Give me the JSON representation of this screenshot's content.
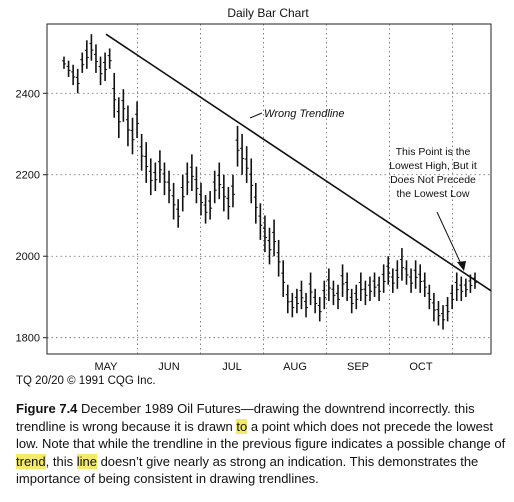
{
  "chart_data": {
    "type": "bar",
    "subtype": "ohlc",
    "title": "Daily Bar Chart",
    "ylim": [
      1760,
      2570
    ],
    "yticks": [
      1800,
      2000,
      2200,
      2400
    ],
    "grid": true,
    "months": [
      "MAY",
      "JUN",
      "JUL",
      "AUG",
      "SEP",
      "OCT"
    ],
    "trendline": {
      "label": "Wrong Trendline",
      "start": {
        "x": "early May",
        "y": 2545
      },
      "end": {
        "x": "late Oct",
        "y": 1915
      }
    },
    "annotation": {
      "lines": [
        "This Point is the",
        "Lowest High, But it",
        "Does Not Precede",
        "the Lowest Low"
      ]
    },
    "bars": [
      {
        "high": 2490,
        "low": 2460
      },
      {
        "high": 2480,
        "low": 2440
      },
      {
        "high": 2470,
        "low": 2420
      },
      {
        "high": 2460,
        "low": 2400
      },
      {
        "high": 2500,
        "low": 2450
      },
      {
        "high": 2530,
        "low": 2460
      },
      {
        "high": 2545,
        "low": 2480
      },
      {
        "high": 2520,
        "low": 2450
      },
      {
        "high": 2490,
        "low": 2420
      },
      {
        "high": 2500,
        "low": 2430
      },
      {
        "high": 2510,
        "low": 2460
      },
      {
        "high": 2450,
        "low": 2340
      },
      {
        "high": 2390,
        "low": 2290
      },
      {
        "high": 2410,
        "low": 2330
      },
      {
        "high": 2370,
        "low": 2270
      },
      {
        "high": 2340,
        "low": 2250
      },
      {
        "high": 2380,
        "low": 2290
      },
      {
        "high": 2300,
        "low": 2210
      },
      {
        "high": 2280,
        "low": 2180
      },
      {
        "high": 2240,
        "low": 2150
      },
      {
        "high": 2230,
        "low": 2160
      },
      {
        "high": 2260,
        "low": 2180
      },
      {
        "high": 2230,
        "low": 2150
      },
      {
        "high": 2210,
        "low": 2130
      },
      {
        "high": 2180,
        "low": 2090
      },
      {
        "high": 2140,
        "low": 2070
      },
      {
        "high": 2200,
        "low": 2110
      },
      {
        "high": 2230,
        "low": 2150
      },
      {
        "high": 2250,
        "low": 2160
      },
      {
        "high": 2220,
        "low": 2130
      },
      {
        "high": 2180,
        "low": 2100
      },
      {
        "high": 2150,
        "low": 2080
      },
      {
        "high": 2160,
        "low": 2090
      },
      {
        "high": 2210,
        "low": 2130
      },
      {
        "high": 2230,
        "low": 2140
      },
      {
        "high": 2200,
        "low": 2110
      },
      {
        "high": 2170,
        "low": 2090
      },
      {
        "high": 2200,
        "low": 2120
      },
      {
        "high": 2320,
        "low": 2220
      },
      {
        "high": 2300,
        "low": 2200
      },
      {
        "high": 2270,
        "low": 2180
      },
      {
        "high": 2240,
        "low": 2130
      },
      {
        "high": 2180,
        "low": 2080
      },
      {
        "high": 2130,
        "low": 2040
      },
      {
        "high": 2100,
        "low": 2010
      },
      {
        "high": 2070,
        "low": 1980
      },
      {
        "high": 2090,
        "low": 2000
      },
      {
        "high": 2040,
        "low": 1950
      },
      {
        "high": 1990,
        "low": 1900
      },
      {
        "high": 1930,
        "low": 1860
      },
      {
        "high": 1910,
        "low": 1850
      },
      {
        "high": 1920,
        "low": 1860
      },
      {
        "high": 1940,
        "low": 1870
      },
      {
        "high": 1910,
        "low": 1850
      },
      {
        "high": 1960,
        "low": 1880
      },
      {
        "high": 1920,
        "low": 1860
      },
      {
        "high": 1900,
        "low": 1840
      },
      {
        "high": 1940,
        "low": 1870
      },
      {
        "high": 1970,
        "low": 1890
      },
      {
        "high": 1940,
        "low": 1880
      },
      {
        "high": 1930,
        "low": 1870
      },
      {
        "high": 1980,
        "low": 1900
      },
      {
        "high": 1960,
        "low": 1890
      },
      {
        "high": 1920,
        "low": 1860
      },
      {
        "high": 1930,
        "low": 1870
      },
      {
        "high": 1960,
        "low": 1890
      },
      {
        "high": 1940,
        "low": 1880
      },
      {
        "high": 1950,
        "low": 1890
      },
      {
        "high": 1960,
        "low": 1900
      },
      {
        "high": 1950,
        "low": 1890
      },
      {
        "high": 1980,
        "low": 1910
      },
      {
        "high": 2000,
        "low": 1930
      },
      {
        "high": 1970,
        "low": 1910
      },
      {
        "high": 1990,
        "low": 1920
      },
      {
        "high": 2020,
        "low": 1940
      },
      {
        "high": 1990,
        "low": 1930
      },
      {
        "high": 1970,
        "low": 1910
      },
      {
        "high": 1990,
        "low": 1920
      },
      {
        "high": 1980,
        "low": 1910
      },
      {
        "high": 1960,
        "low": 1900
      },
      {
        "high": 1930,
        "low": 1870
      },
      {
        "high": 1910,
        "low": 1840
      },
      {
        "high": 1890,
        "low": 1830
      },
      {
        "high": 1880,
        "low": 1820
      },
      {
        "high": 1900,
        "low": 1840
      },
      {
        "high": 1930,
        "low": 1870
      },
      {
        "high": 1960,
        "low": 1890
      },
      {
        "high": 1950,
        "low": 1890
      },
      {
        "high": 1945,
        "low": 1900
      },
      {
        "high": 1955,
        "low": 1910
      },
      {
        "high": 1960,
        "low": 1920
      }
    ]
  },
  "credit": "TQ 20/20 © 1991 CQG Inc.",
  "caption": {
    "label": "Figure 7.4",
    "seg1": " December 1989 Oil Futures—drawing the downtrend incorrectly. this trendline is wrong because it is drawn ",
    "hl1": "to",
    "seg2": " a point which does not precede the lowest low. Note that while the trendline in the previous figure indicates a possible change of ",
    "hl2": "trend",
    "seg3": ", this ",
    "hl3": "line",
    "seg4": " doesn’t give nearly as strong an indication. This demonstrates the importance of being consistent in drawing trendlines."
  }
}
